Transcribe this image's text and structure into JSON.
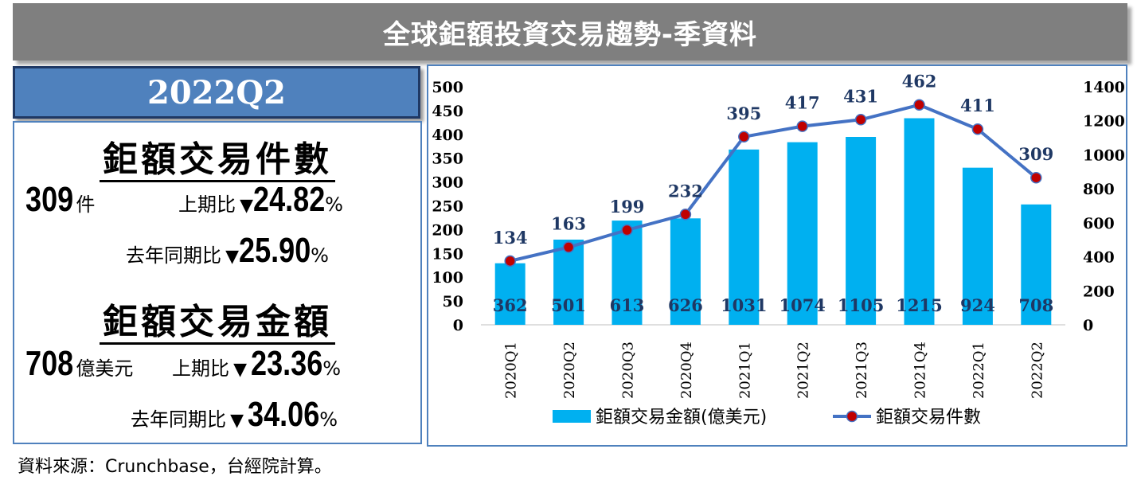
{
  "title": "全球鉅額投資交易趨勢-季資料",
  "period": "2022Q2",
  "count_section": {
    "heading": "鉅額交易件數",
    "value": "309",
    "unit": "件",
    "qoq_label": "上期比",
    "qoq_arrow": "▼",
    "qoq_value": "24.82",
    "yoy_label": "去年同期比",
    "yoy_arrow": "▼",
    "yoy_value": "25.90",
    "pct": "%"
  },
  "amount_section": {
    "heading": "鉅額交易金額",
    "value": "708",
    "unit": "億美元",
    "qoq_label": "上期比",
    "qoq_arrow": "▼",
    "qoq_value": "23.36",
    "yoy_label": "去年同期比",
    "yoy_arrow": "▼",
    "yoy_value": "34.06",
    "pct": "%"
  },
  "source": "資料來源：Crunchbase，台經院計算。",
  "colors": {
    "bar": "#00b0f0",
    "line": "#4472c4",
    "marker": "#c00000",
    "label": "#1f3864"
  },
  "chart_data": {
    "type": "bar",
    "categories": [
      "2020Q1",
      "2020Q2",
      "2020Q3",
      "2020Q4",
      "2021Q1",
      "2021Q2",
      "2021Q3",
      "2021Q4",
      "2022Q1",
      "2022Q2"
    ],
    "series": [
      {
        "name": "鉅額交易金額(億美元)",
        "type": "bar",
        "axis": "right",
        "values": [
          362,
          501,
          613,
          626,
          1031,
          1074,
          1105,
          1215,
          924,
          708
        ]
      },
      {
        "name": "鉅額交易件數",
        "type": "line",
        "axis": "left",
        "values": [
          134,
          163,
          199,
          232,
          395,
          417,
          431,
          462,
          411,
          309
        ]
      }
    ],
    "left_axis": {
      "ylim": [
        0,
        500
      ],
      "ticks": [
        "0",
        "50",
        "100",
        "150",
        "200",
        "250",
        "300",
        "350",
        "400",
        "450",
        "500"
      ]
    },
    "right_axis": {
      "ylim": [
        0,
        1400
      ],
      "ticks": [
        "0",
        "200",
        "400",
        "600",
        "800",
        "1000",
        "1200",
        "1400"
      ]
    },
    "legend_position": "bottom"
  }
}
